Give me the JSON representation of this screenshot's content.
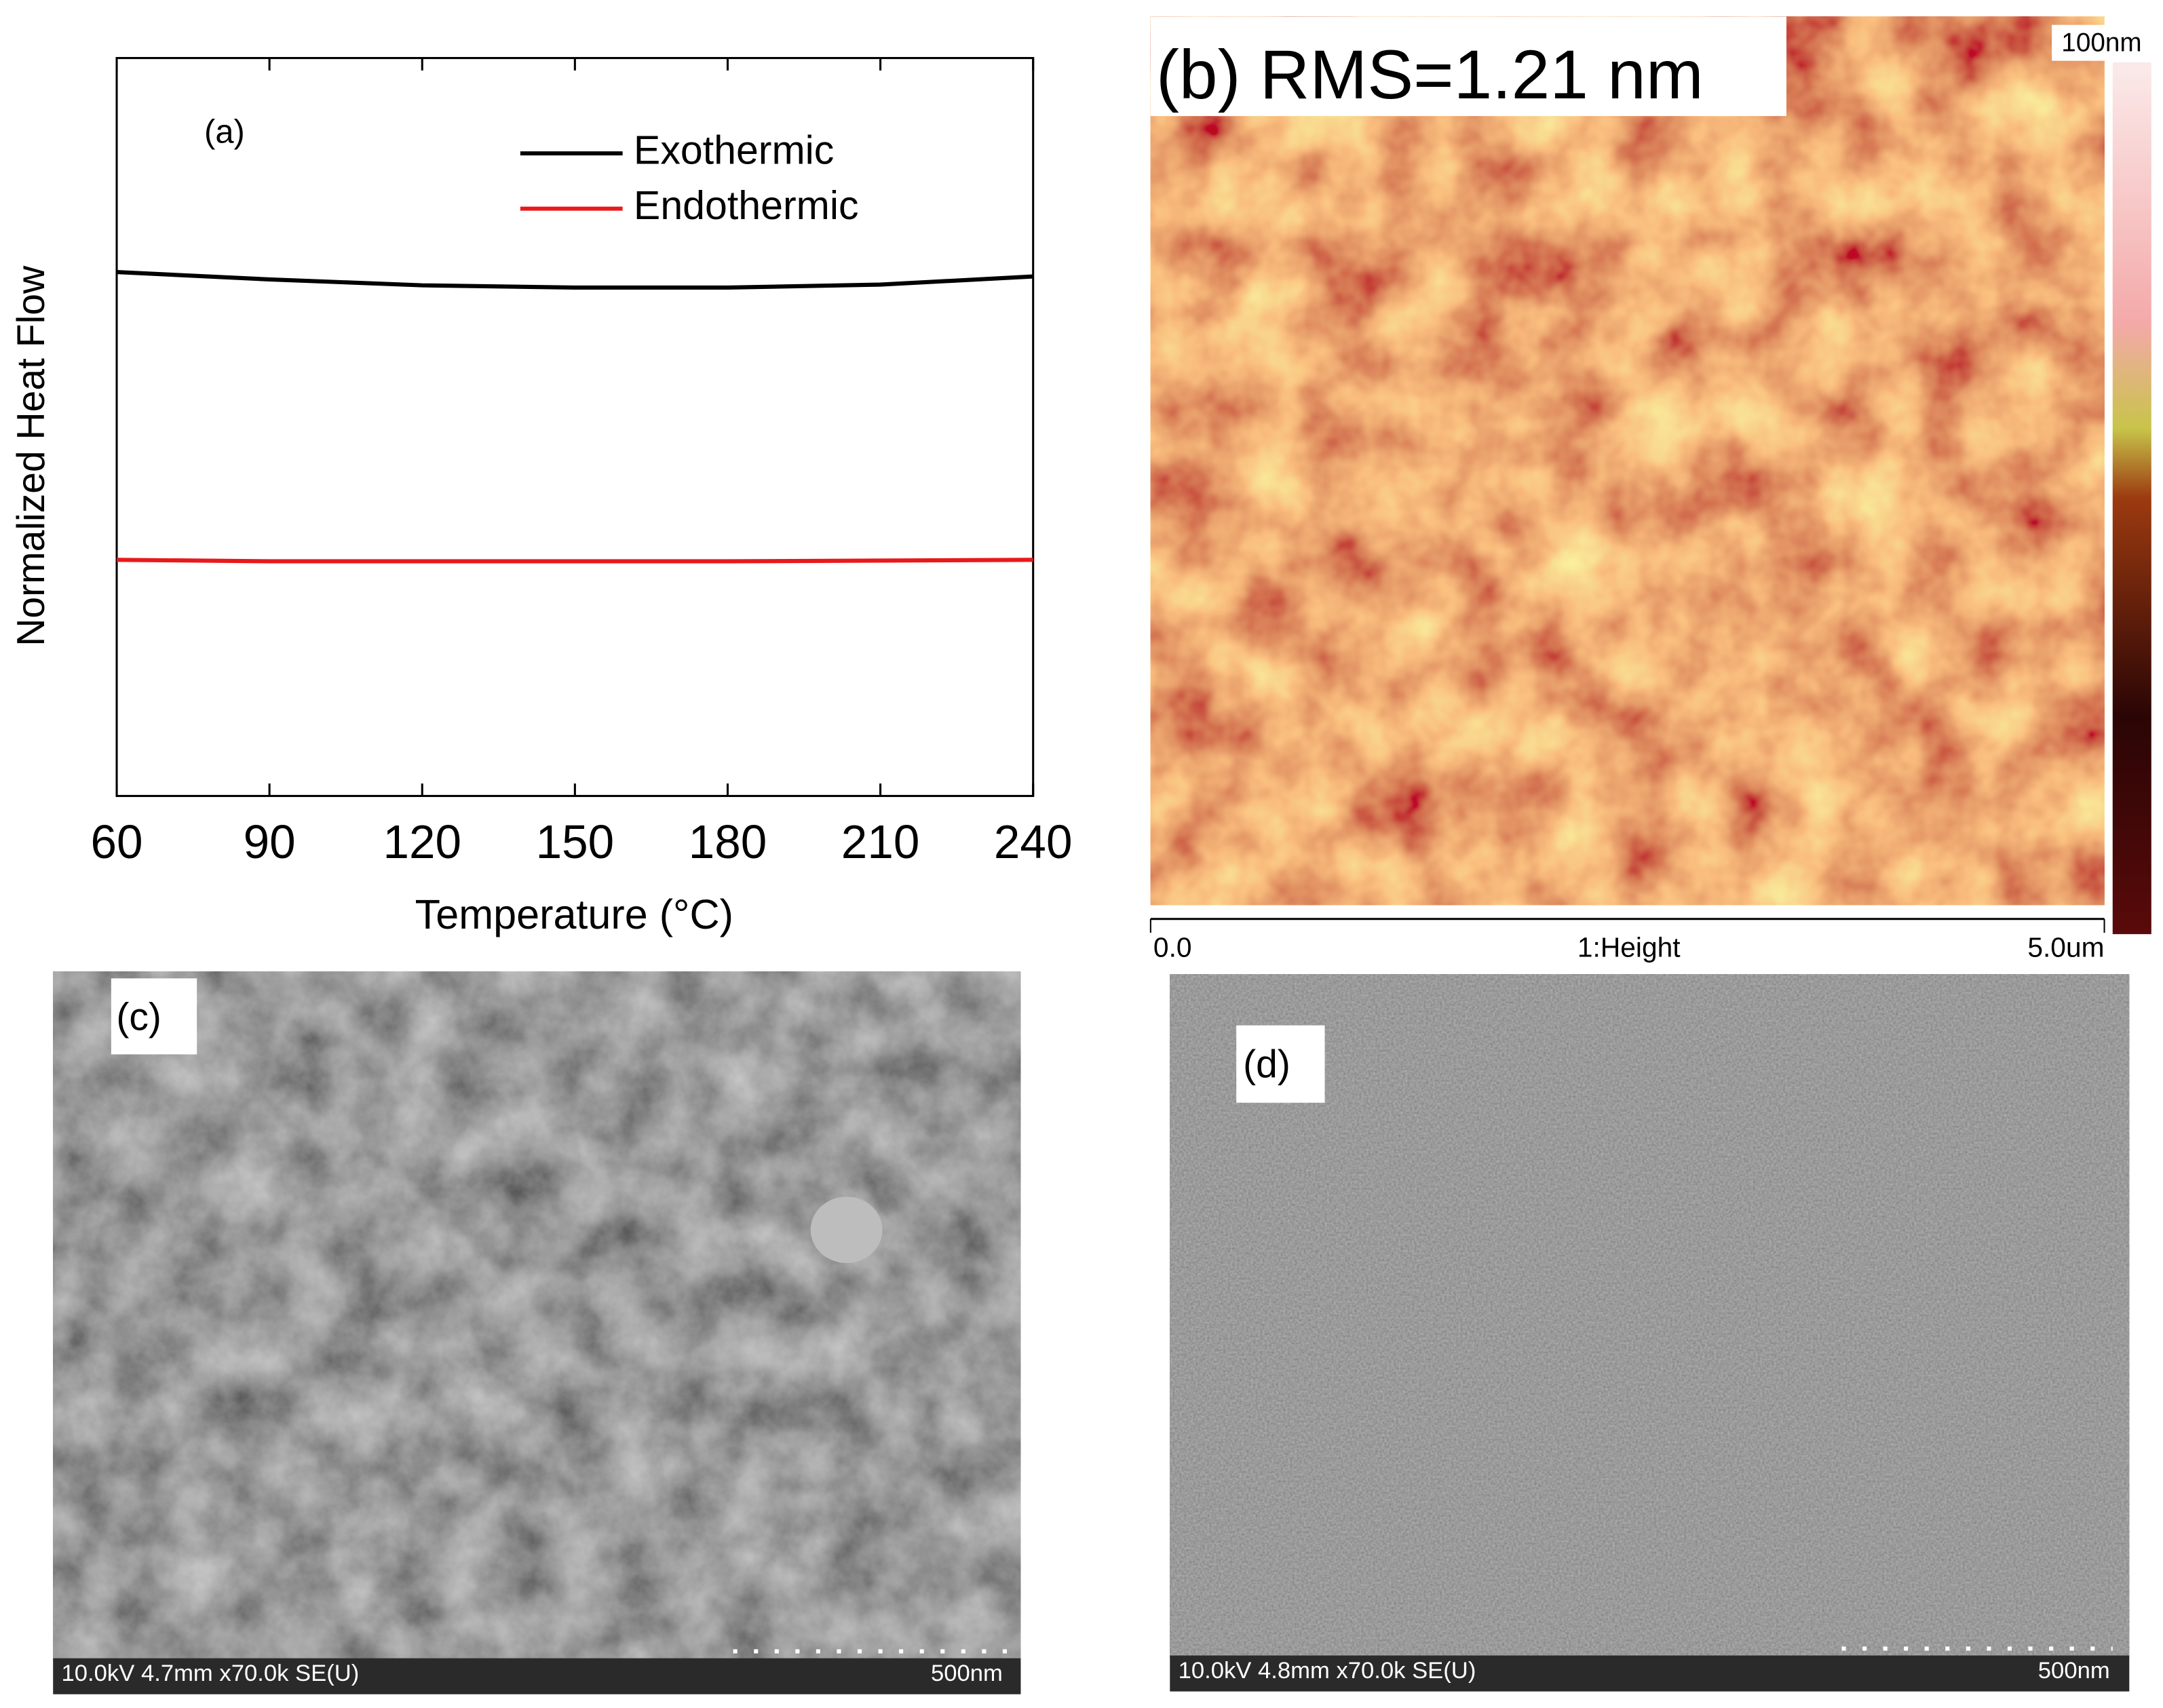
{
  "chart_data": {
    "type": "line",
    "annotation": "(a)",
    "x_label": "Temperature (°C)",
    "y_label": "Normalized Heat Flow",
    "x": [
      60,
      90,
      120,
      150,
      180,
      210,
      240
    ],
    "series": [
      {
        "name": "Exothermic",
        "color": "#000000",
        "values": [
          0.71,
          0.7,
          0.692,
          0.689,
          0.689,
          0.693,
          0.704
        ]
      },
      {
        "name": "Endothermic",
        "color": "#e8191b",
        "values": [
          0.32,
          0.318,
          0.318,
          0.318,
          0.318,
          0.319,
          0.32
        ]
      }
    ],
    "xlim": [
      60,
      240
    ],
    "xticks": [
      60,
      90,
      120,
      150,
      180,
      210,
      240
    ],
    "ylim": [
      0,
      1
    ],
    "legend": "upper right"
  },
  "panels": {
    "b": {
      "label": "(b) RMS=1.21 nm",
      "scale_max": "100nm",
      "axis_start": "0.0",
      "axis_title": "1:Height",
      "axis_end": "5.0um"
    },
    "c": {
      "label": "(c)",
      "info": "10.0kV 4.7mm x70.0k SE(U)",
      "scale": "500nm"
    },
    "d": {
      "label": "(d)",
      "info": "10.0kV 4.8mm x70.0k SE(U)",
      "scale": "500nm"
    }
  }
}
